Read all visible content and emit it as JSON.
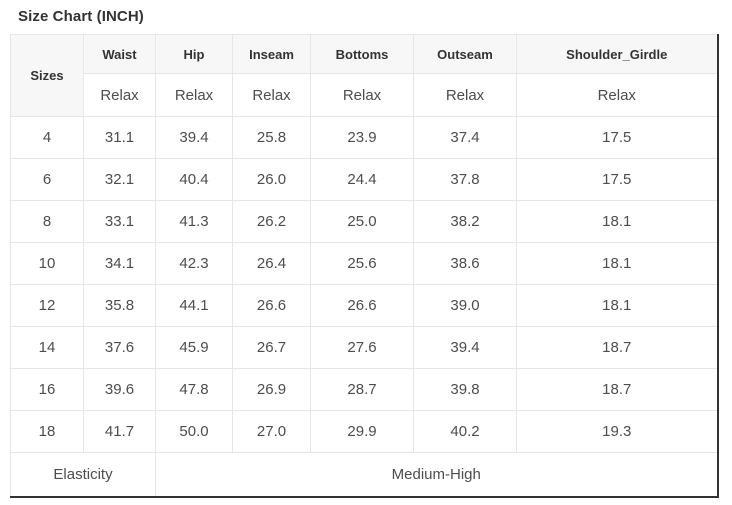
{
  "chart_data": {
    "type": "table",
    "title": "Size Chart (INCH)",
    "unit": "INCH",
    "corner_header": "Sizes",
    "columns": [
      "Waist",
      "Hip",
      "Inseam",
      "Bottoms",
      "Outseam",
      "Shoulder_Girdle"
    ],
    "sub_headers": [
      "Relax",
      "Relax",
      "Relax",
      "Relax",
      "Relax",
      "Relax"
    ],
    "rows": [
      {
        "size": "4",
        "values": [
          "31.1",
          "39.4",
          "25.8",
          "23.9",
          "37.4",
          "17.5"
        ]
      },
      {
        "size": "6",
        "values": [
          "32.1",
          "40.4",
          "26.0",
          "24.4",
          "37.8",
          "17.5"
        ]
      },
      {
        "size": "8",
        "values": [
          "33.1",
          "41.3",
          "26.2",
          "25.0",
          "38.2",
          "18.1"
        ]
      },
      {
        "size": "10",
        "values": [
          "34.1",
          "42.3",
          "26.4",
          "25.6",
          "38.6",
          "18.1"
        ]
      },
      {
        "size": "12",
        "values": [
          "35.8",
          "44.1",
          "26.6",
          "26.6",
          "39.0",
          "18.1"
        ]
      },
      {
        "size": "14",
        "values": [
          "37.6",
          "45.9",
          "26.7",
          "27.6",
          "39.4",
          "18.7"
        ]
      },
      {
        "size": "16",
        "values": [
          "39.6",
          "47.8",
          "26.9",
          "28.7",
          "39.8",
          "18.7"
        ]
      },
      {
        "size": "18",
        "values": [
          "41.7",
          "50.0",
          "27.0",
          "29.9",
          "40.2",
          "19.3"
        ]
      }
    ],
    "footer": {
      "label": "Elasticity",
      "value": "Medium-High"
    },
    "colors": {
      "header_bg": "#f7f7f7",
      "grid_border": "#e6e6e6",
      "outer_border_dark": "#323232",
      "header_text": "#333333",
      "cell_text": "#4d4d4d"
    }
  }
}
